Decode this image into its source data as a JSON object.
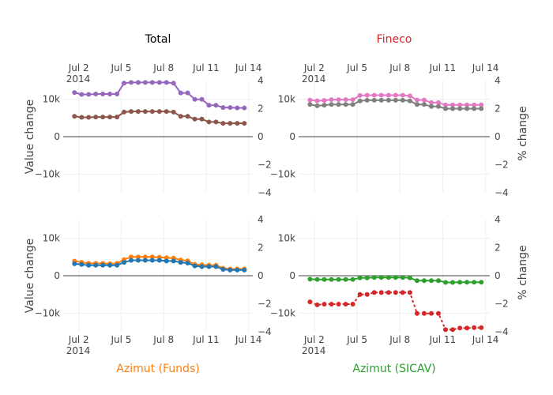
{
  "chart_data": {
    "type": "line",
    "x_ticks": [
      {
        "value": 2,
        "label": "Jul 2",
        "sublabel": "2014"
      },
      {
        "value": 5,
        "label": "Jul 5",
        "sublabel": ""
      },
      {
        "value": 8,
        "label": "Jul 8",
        "sublabel": ""
      },
      {
        "value": 11,
        "label": "Jul 11",
        "sublabel": ""
      },
      {
        "value": 14,
        "label": "Jul 14",
        "sublabel": ""
      }
    ],
    "xlim": [
      0.9,
      14.3
    ],
    "y_left": {
      "range": [
        -15000,
        15000
      ],
      "ticks": [
        10000,
        0,
        -10000
      ],
      "tick_labels": [
        "10k",
        "0",
        "−10k"
      ]
    },
    "y_right": {
      "range": [
        -4,
        4
      ],
      "ticks": [
        4,
        2,
        0,
        -2,
        -4
      ],
      "tick_labels": [
        "4",
        "2",
        "0",
        "−2",
        "−4"
      ]
    },
    "x_days": [
      1.7,
      2.2,
      2.7,
      3.2,
      3.7,
      4.2,
      4.7,
      5.2,
      5.7,
      6.2,
      6.7,
      7.2,
      7.7,
      8.2,
      8.7,
      9.2,
      9.7,
      10.2,
      10.7,
      11.2,
      11.7,
      12.2,
      12.7,
      13.2,
      13.7
    ],
    "panels": [
      {
        "title": "Total",
        "title_color": "#000000",
        "title_position": "top",
        "ylabel_left": "Value change",
        "ylabel_right": "",
        "series": [
          {
            "axis": "left",
            "color": "#9467bd",
            "dashed": false,
            "values": [
              11800,
              11300,
              11300,
              11400,
              11400,
              11400,
              11400,
              14300,
              14500,
              14500,
              14500,
              14500,
              14500,
              14500,
              14300,
              11700,
              11700,
              10000,
              10000,
              8400,
              8400,
              7800,
              7800,
              7700,
              7700
            ]
          },
          {
            "axis": "right",
            "color": "#8c564b",
            "dashed": false,
            "values": [
              1.45,
              1.38,
              1.38,
              1.4,
              1.4,
              1.4,
              1.4,
              1.75,
              1.8,
              1.8,
              1.8,
              1.8,
              1.8,
              1.8,
              1.75,
              1.45,
              1.45,
              1.25,
              1.25,
              1.05,
              1.05,
              0.95,
              0.95,
              0.95,
              0.95
            ]
          }
        ]
      },
      {
        "title": "Fineco",
        "title_color": "#d62728",
        "title_position": "top",
        "ylabel_left": "",
        "ylabel_right": "% change",
        "series": [
          {
            "axis": "left",
            "color": "#e377c2",
            "dashed": false,
            "values": [
              9800,
              9600,
              9700,
              9900,
              9900,
              9900,
              9900,
              11000,
              11100,
              11100,
              11100,
              11100,
              11100,
              11100,
              10900,
              9800,
              9800,
              9100,
              9100,
              8500,
              8500,
              8500,
              8500,
              8500,
              8500
            ]
          },
          {
            "axis": "right",
            "color": "#7f7f7f",
            "dashed": false,
            "values": [
              2.3,
              2.2,
              2.25,
              2.3,
              2.3,
              2.3,
              2.3,
              2.55,
              2.6,
              2.6,
              2.6,
              2.6,
              2.6,
              2.6,
              2.55,
              2.3,
              2.3,
              2.15,
              2.15,
              2.0,
              2.0,
              2.0,
              2.0,
              2.0,
              2.0
            ]
          }
        ]
      },
      {
        "title": "Azimut (Funds)",
        "title_color": "#ff7f0e",
        "title_position": "bottom",
        "ylabel_left": "Value change",
        "ylabel_right": "",
        "series": [
          {
            "axis": "left",
            "color": "#ff7f0e",
            "dashed": false,
            "values": [
              3900,
              3600,
              3300,
              3300,
              3300,
              3200,
              3300,
              4300,
              5000,
              5000,
              5000,
              5000,
              4900,
              4800,
              4700,
              4200,
              4000,
              3000,
              2900,
              2800,
              2800,
              2000,
              1800,
              1800,
              1800
            ]
          },
          {
            "axis": "right",
            "color": "#1f77b4",
            "dashed": false,
            "values": [
              0.85,
              0.8,
              0.75,
              0.75,
              0.75,
              0.75,
              0.75,
              0.95,
              1.1,
              1.1,
              1.1,
              1.1,
              1.1,
              1.05,
              1.05,
              0.95,
              0.9,
              0.7,
              0.65,
              0.65,
              0.65,
              0.45,
              0.4,
              0.4,
              0.4
            ]
          }
        ]
      },
      {
        "title": "Azimut (SICAV)",
        "title_color": "#2ca02c",
        "title_position": "bottom",
        "ylabel_left": "",
        "ylabel_right": "% change",
        "series": [
          {
            "axis": "left",
            "color": "#d62728",
            "dashed": true,
            "values": [
              -7000,
              -7800,
              -7600,
              -7600,
              -7600,
              -7600,
              -7600,
              -5000,
              -5000,
              -4500,
              -4500,
              -4500,
              -4500,
              -4500,
              -4500,
              -10100,
              -10100,
              -10100,
              -10100,
              -14400,
              -14400,
              -14000,
              -14000,
              -13900,
              -13900
            ]
          },
          {
            "axis": "right",
            "color": "#2ca02c",
            "dashed": false,
            "values": [
              -0.25,
              -0.27,
              -0.27,
              -0.27,
              -0.27,
              -0.27,
              -0.27,
              -0.15,
              -0.15,
              -0.13,
              -0.13,
              -0.13,
              -0.13,
              -0.13,
              -0.15,
              -0.35,
              -0.35,
              -0.35,
              -0.35,
              -0.48,
              -0.48,
              -0.47,
              -0.47,
              -0.47,
              -0.47
            ]
          }
        ]
      }
    ]
  }
}
